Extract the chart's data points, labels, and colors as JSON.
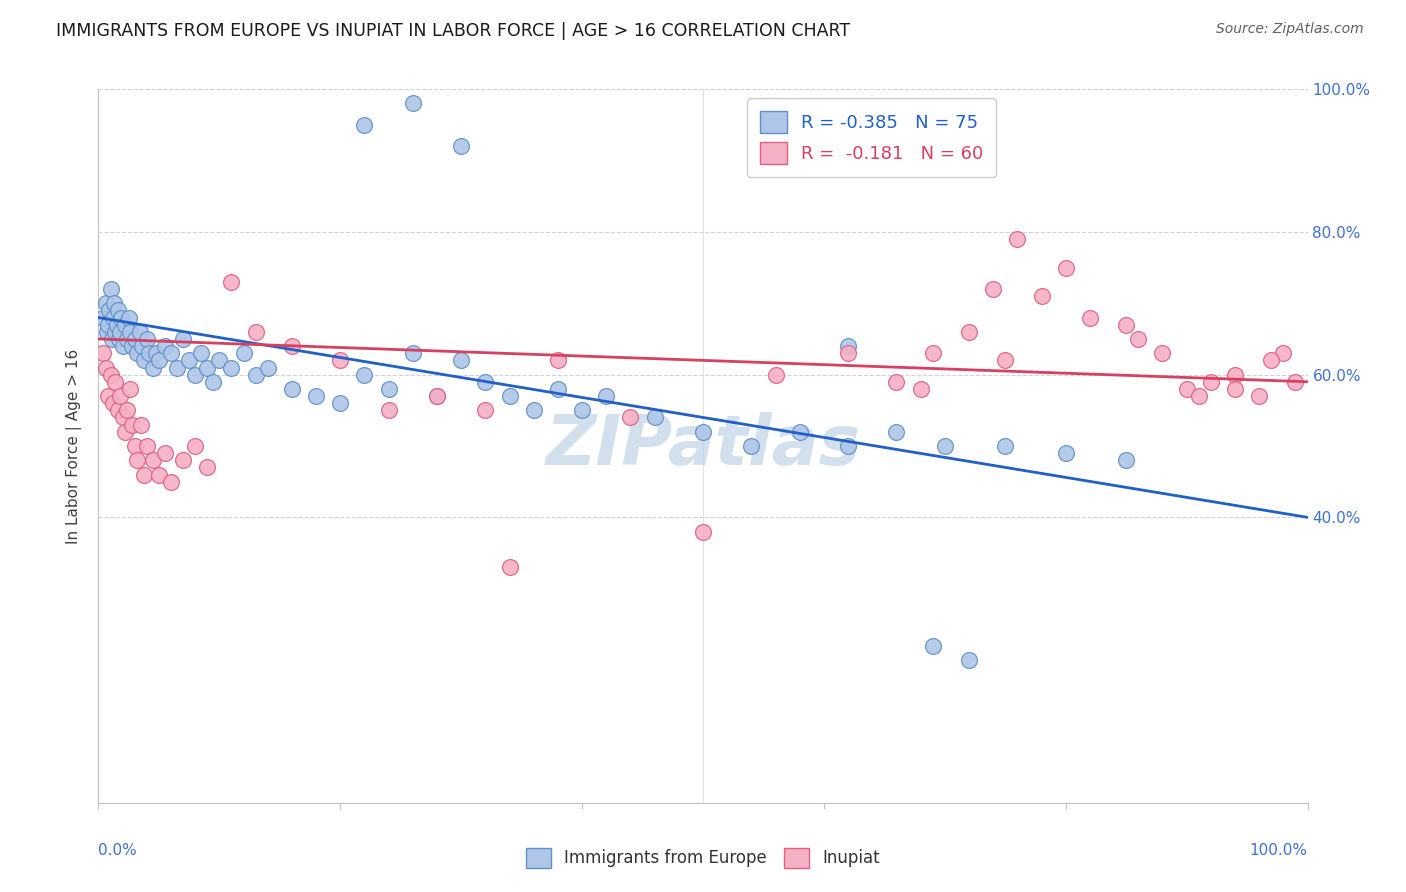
{
  "title": "IMMIGRANTS FROM EUROPE VS INUPIAT IN LABOR FORCE | AGE > 16 CORRELATION CHART",
  "source_text": "Source: ZipAtlas.com",
  "ylabel": "In Labor Force | Age > 16",
  "xlim": [
    0.0,
    1.0
  ],
  "ylim": [
    0.0,
    1.0
  ],
  "right_ytick_labels": [
    "40.0%",
    "60.0%",
    "80.0%",
    "100.0%"
  ],
  "blue_scatter_x": [
    0.004,
    0.006,
    0.007,
    0.008,
    0.009,
    0.01,
    0.011,
    0.012,
    0.013,
    0.014,
    0.015,
    0.016,
    0.017,
    0.018,
    0.019,
    0.02,
    0.022,
    0.024,
    0.025,
    0.026,
    0.028,
    0.03,
    0.032,
    0.034,
    0.036,
    0.038,
    0.04,
    0.042,
    0.045,
    0.048,
    0.05,
    0.055,
    0.06,
    0.065,
    0.07,
    0.075,
    0.08,
    0.085,
    0.09,
    0.095,
    0.1,
    0.11,
    0.12,
    0.13,
    0.14,
    0.16,
    0.18,
    0.2,
    0.22,
    0.24,
    0.26,
    0.28,
    0.3,
    0.32,
    0.34,
    0.36,
    0.38,
    0.4,
    0.42,
    0.46,
    0.5,
    0.54,
    0.58,
    0.62,
    0.66,
    0.7,
    0.75,
    0.8,
    0.85,
    0.62,
    0.22,
    0.26,
    0.3,
    0.69,
    0.72
  ],
  "blue_scatter_y": [
    0.68,
    0.7,
    0.66,
    0.67,
    0.69,
    0.72,
    0.65,
    0.68,
    0.7,
    0.66,
    0.67,
    0.69,
    0.65,
    0.66,
    0.68,
    0.64,
    0.67,
    0.65,
    0.68,
    0.66,
    0.64,
    0.65,
    0.63,
    0.66,
    0.64,
    0.62,
    0.65,
    0.63,
    0.61,
    0.63,
    0.62,
    0.64,
    0.63,
    0.61,
    0.65,
    0.62,
    0.6,
    0.63,
    0.61,
    0.59,
    0.62,
    0.61,
    0.63,
    0.6,
    0.61,
    0.58,
    0.57,
    0.56,
    0.6,
    0.58,
    0.63,
    0.57,
    0.62,
    0.59,
    0.57,
    0.55,
    0.58,
    0.55,
    0.57,
    0.54,
    0.52,
    0.5,
    0.52,
    0.5,
    0.52,
    0.5,
    0.5,
    0.49,
    0.48,
    0.64,
    0.95,
    0.98,
    0.92,
    0.22,
    0.2
  ],
  "pink_scatter_x": [
    0.004,
    0.006,
    0.008,
    0.01,
    0.012,
    0.014,
    0.016,
    0.018,
    0.02,
    0.022,
    0.024,
    0.026,
    0.028,
    0.03,
    0.032,
    0.035,
    0.038,
    0.04,
    0.045,
    0.05,
    0.055,
    0.06,
    0.07,
    0.08,
    0.09,
    0.11,
    0.13,
    0.16,
    0.2,
    0.24,
    0.28,
    0.32,
    0.38,
    0.44,
    0.5,
    0.56,
    0.62,
    0.68,
    0.74,
    0.8,
    0.86,
    0.9,
    0.92,
    0.94,
    0.96,
    0.98,
    0.99,
    0.97,
    0.94,
    0.91,
    0.88,
    0.85,
    0.82,
    0.78,
    0.75,
    0.72,
    0.69,
    0.66,
    0.76,
    0.34
  ],
  "pink_scatter_y": [
    0.63,
    0.61,
    0.57,
    0.6,
    0.56,
    0.59,
    0.55,
    0.57,
    0.54,
    0.52,
    0.55,
    0.58,
    0.53,
    0.5,
    0.48,
    0.53,
    0.46,
    0.5,
    0.48,
    0.46,
    0.49,
    0.45,
    0.48,
    0.5,
    0.47,
    0.73,
    0.66,
    0.64,
    0.62,
    0.55,
    0.57,
    0.55,
    0.62,
    0.54,
    0.38,
    0.6,
    0.63,
    0.58,
    0.72,
    0.75,
    0.65,
    0.58,
    0.59,
    0.6,
    0.57,
    0.63,
    0.59,
    0.62,
    0.58,
    0.57,
    0.63,
    0.67,
    0.68,
    0.71,
    0.62,
    0.66,
    0.63,
    0.59,
    0.79,
    0.33
  ],
  "blue_line_x": [
    0.0,
    1.0
  ],
  "blue_line_y": [
    0.68,
    0.4
  ],
  "pink_line_x": [
    0.0,
    1.0
  ],
  "pink_line_y": [
    0.65,
    0.59
  ],
  "scatter_size": 130,
  "blue_face_color": "#aec6e8",
  "blue_edge_color": "#6090c8",
  "pink_face_color": "#f4b0c4",
  "pink_edge_color": "#e06080",
  "blue_line_color": "#2060c8",
  "pink_line_color": "#d84060",
  "background_color": "#ffffff",
  "grid_color": "#d0d0e0",
  "watermark_text": "ZIPatlas",
  "watermark_color": "#c0d4e8",
  "corner_label_color": "#4070d0",
  "tick_label_color": "#555555"
}
